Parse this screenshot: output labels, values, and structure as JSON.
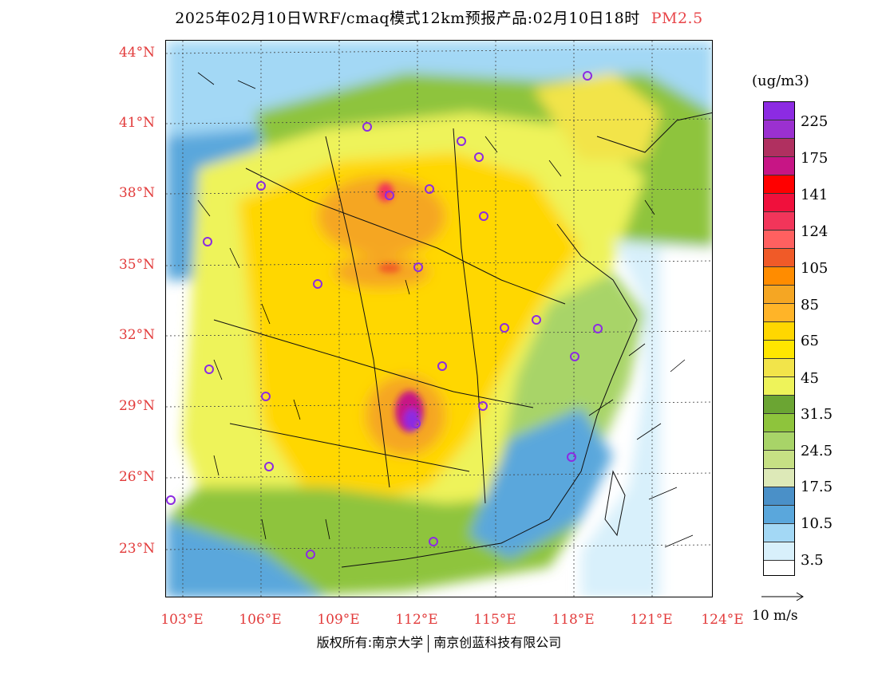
{
  "title": {
    "main": "2025年02月10日WRF/cmaq模式12km预报产品:02月10日18时",
    "pollutant": "PM2.5"
  },
  "axes": {
    "lat_labels": [
      "44°N",
      "41°N",
      "38°N",
      "35°N",
      "32°N",
      "29°N",
      "26°N",
      "23°N"
    ],
    "lon_labels": [
      "103°E",
      "106°E",
      "109°E",
      "112°E",
      "115°E",
      "118°E",
      "121°E",
      "124°E"
    ]
  },
  "legend": {
    "unit": "(ug/m3)",
    "colors": [
      "#8c2be2",
      "#9b30d0",
      "#b03060",
      "#c71585",
      "#ff0000",
      "#f0103c",
      "#f2355a",
      "#ff6060",
      "#f05a28",
      "#ff8c00",
      "#f5a623",
      "#ffb428",
      "#ffd700",
      "#ffe600",
      "#f2e44a",
      "#eef35a",
      "#6ba533",
      "#8ec43c",
      "#a8d468",
      "#c6e084",
      "#dde9b8",
      "#4a90c8",
      "#5aa7dc",
      "#a3d8f5",
      "#d8f0fb",
      "#ffffff"
    ],
    "labels": [
      "225",
      "175",
      "141",
      "124",
      "105",
      "85",
      "65",
      "45",
      "31.5",
      "24.5",
      "17.5",
      "10.5",
      "3.5"
    ]
  },
  "wind_reference": {
    "label": "10 m/s"
  },
  "footer": {
    "copyright_left": "版权所有:南京大学",
    "copyright_right": "南京创蓝科技有限公司"
  }
}
